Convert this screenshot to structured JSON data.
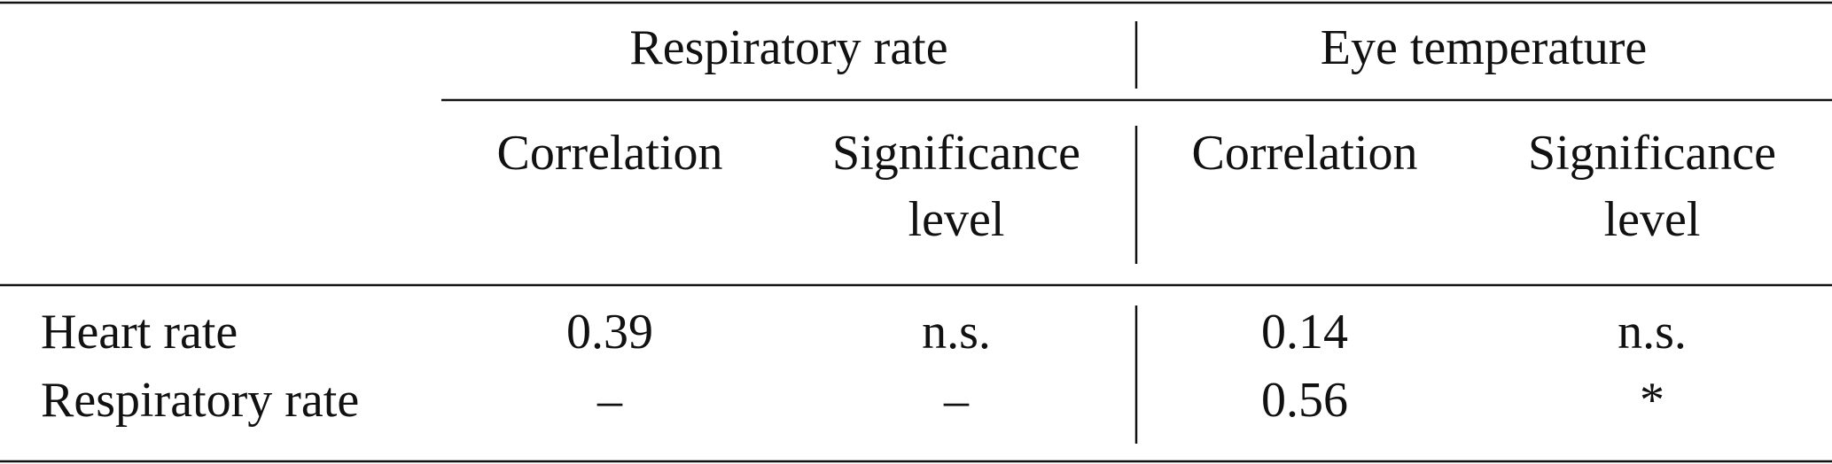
{
  "table": {
    "groups": [
      "Respiratory rate",
      "Eye temperature"
    ],
    "columns": [
      [
        "Correlation"
      ],
      [
        "Significance",
        "level"
      ],
      [
        "Correlation"
      ],
      [
        "Significance",
        "level"
      ]
    ],
    "rows": [
      [
        "Heart rate",
        "0.39",
        "n.s.",
        "0.14",
        "n.s."
      ],
      [
        "Respiratory rate",
        "–",
        "–",
        "0.56",
        "*"
      ]
    ]
  }
}
